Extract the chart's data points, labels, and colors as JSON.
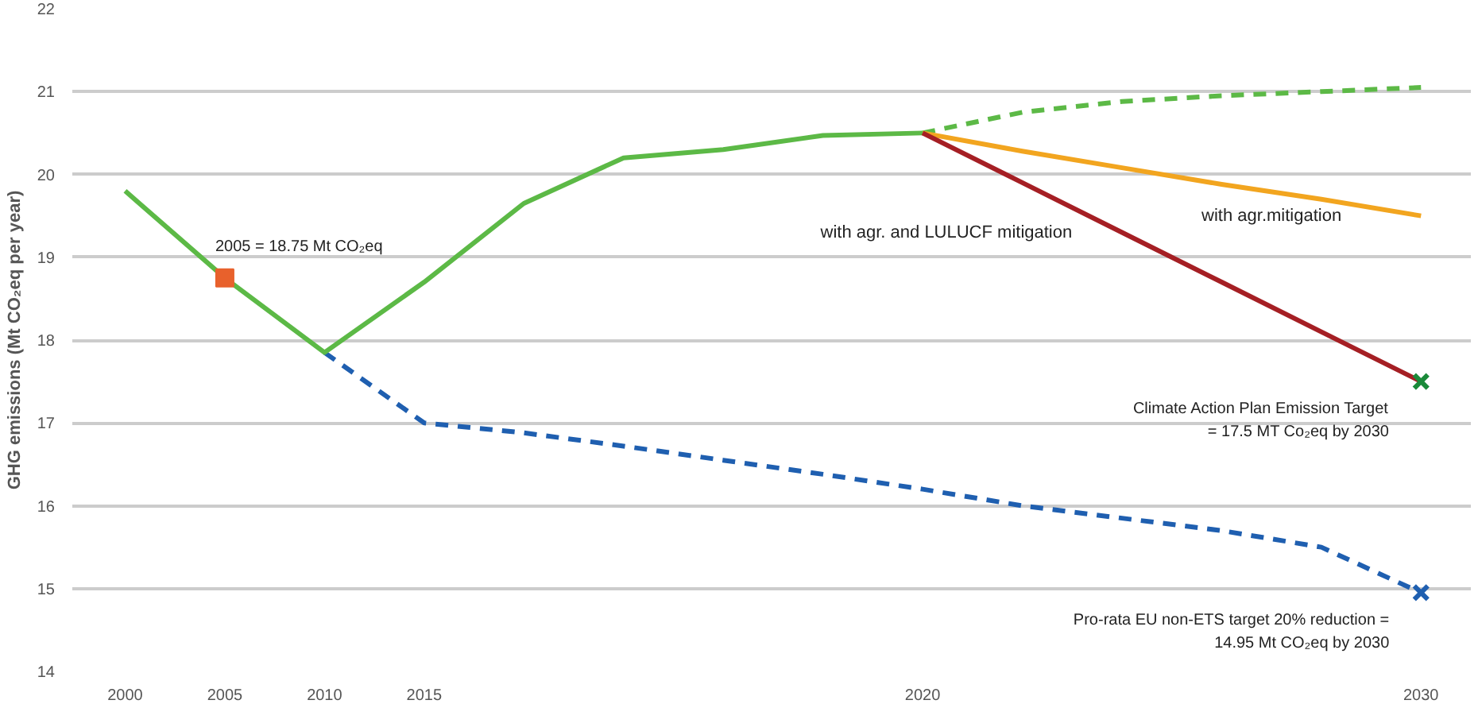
{
  "chart_data": {
    "type": "line",
    "ylabel": "GHG emissions (Mt CO₂eq per year)",
    "categories": [
      "2000",
      "2005",
      "2010",
      "2015",
      null,
      null,
      null,
      null,
      "2020",
      null,
      null,
      null,
      null,
      "2030"
    ],
    "ylim": [
      14,
      22
    ],
    "yticks": [
      14,
      15,
      16,
      17,
      18,
      19,
      20,
      21,
      22
    ],
    "grid": "y",
    "marker": "none",
    "series": [
      {
        "color": "#1f5fb0",
        "line_style": "dashed",
        "values": [
          null,
          null,
          17.85,
          17.0,
          16.88,
          16.72,
          16.55,
          16.38,
          16.2,
          16.0,
          15.85,
          15.7,
          15.5,
          14.95
        ]
      },
      {
        "color": "#5cb946",
        "line_style": "dashed",
        "values": [
          null,
          null,
          null,
          null,
          null,
          null,
          null,
          null,
          20.5,
          20.75,
          20.88,
          20.95,
          21.0,
          21.05
        ]
      },
      {
        "color": "#5cb946",
        "line_style": "solid",
        "values": [
          19.8,
          18.75,
          17.85,
          18.7,
          19.65,
          20.2,
          20.3,
          20.47,
          20.5,
          null,
          null,
          null,
          null,
          null
        ]
      },
      {
        "name": "with agr.mitigation",
        "color": "#f2a51f",
        "line_style": "solid",
        "values": [
          null,
          null,
          null,
          null,
          null,
          null,
          null,
          null,
          20.5,
          20.28,
          20.08,
          19.88,
          19.7,
          19.5
        ]
      },
      {
        "name": "with agr. and LULUCF mitigation",
        "color": "#a51f24",
        "line_style": "solid",
        "values": [
          null,
          null,
          null,
          null,
          null,
          null,
          null,
          null,
          20.5,
          19.9,
          19.3,
          18.7,
          18.1,
          17.5
        ]
      },
      {
        "type": "scatter",
        "marker": "square",
        "color": "#e8612c",
        "values": [
          null,
          18.75,
          null,
          null,
          null,
          null,
          null,
          null,
          null,
          null,
          null,
          null,
          null,
          null
        ]
      },
      {
        "type": "scatter",
        "marker": "cross",
        "color": "#1a8a3a",
        "values": [
          null,
          null,
          null,
          null,
          null,
          null,
          null,
          null,
          null,
          null,
          null,
          null,
          null,
          17.5
        ]
      },
      {
        "type": "scatter",
        "marker": "cross",
        "color": "#1f5fb0",
        "values": [
          null,
          null,
          null,
          null,
          null,
          null,
          null,
          null,
          null,
          null,
          null,
          null,
          null,
          14.95
        ]
      }
    ],
    "annotations": [
      {
        "text": "2005 = 18.75 Mt CO₂eq",
        "x": "2005",
        "y": 18.75
      },
      {
        "text": "Climate Action Plan Emission Target\n= 17.5 MT Co₂eq by 2030",
        "x": "2030",
        "y": 17.5
      },
      {
        "text": "Pro-rata EU non-ETS target 20% reduction =\n14.95 Mt CO₂eq by 2030",
        "x": "2030",
        "y": 14.95
      }
    ]
  }
}
